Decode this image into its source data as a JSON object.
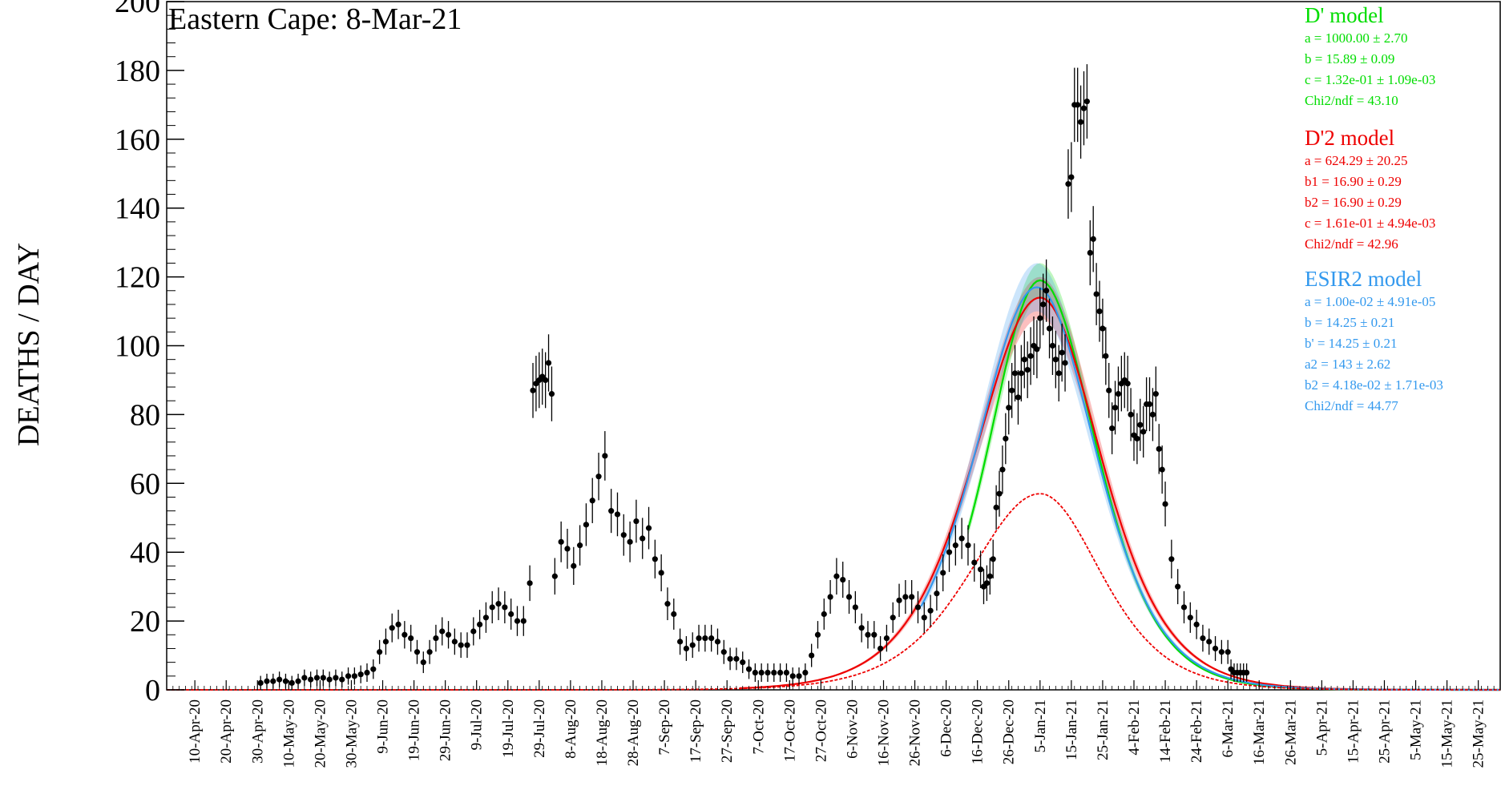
{
  "chart_data": {
    "type": "scatter",
    "title": "Eastern Cape: 8-Mar-21",
    "ylabel": "DEATHS / DAY",
    "xlabel": "",
    "ylim": [
      0,
      200
    ],
    "xlim": [
      "2020-04-01",
      "2021-06-01"
    ],
    "yticks": [
      0,
      20,
      40,
      60,
      80,
      100,
      120,
      140,
      160,
      180,
      200
    ],
    "xtick_labels": [
      {
        "date": "2020-04-10",
        "label": "10-Apr-20"
      },
      {
        "date": "2020-04-20",
        "label": "20-Apr-20"
      },
      {
        "date": "2020-04-30",
        "label": "30-Apr-20"
      },
      {
        "date": "2020-05-10",
        "label": "10-May-20"
      },
      {
        "date": "2020-05-20",
        "label": "20-May-20"
      },
      {
        "date": "2020-05-30",
        "label": "30-May-20"
      },
      {
        "date": "2020-06-09",
        "label": "9-Jun-20"
      },
      {
        "date": "2020-06-19",
        "label": "19-Jun-20"
      },
      {
        "date": "2020-06-29",
        "label": "29-Jun-20"
      },
      {
        "date": "2020-07-09",
        "label": "9-Jul-20"
      },
      {
        "date": "2020-07-19",
        "label": "19-Jul-20"
      },
      {
        "date": "2020-07-29",
        "label": "29-Jul-20"
      },
      {
        "date": "2020-08-08",
        "label": "8-Aug-20"
      },
      {
        "date": "2020-08-18",
        "label": "18-Aug-20"
      },
      {
        "date": "2020-08-28",
        "label": "28-Aug-20"
      },
      {
        "date": "2020-09-07",
        "label": "7-Sep-20"
      },
      {
        "date": "2020-09-17",
        "label": "17-Sep-20"
      },
      {
        "date": "2020-09-27",
        "label": "27-Sep-20"
      },
      {
        "date": "2020-10-07",
        "label": "7-Oct-20"
      },
      {
        "date": "2020-10-17",
        "label": "17-Oct-20"
      },
      {
        "date": "2020-10-27",
        "label": "27-Oct-20"
      },
      {
        "date": "2020-11-06",
        "label": "6-Nov-20"
      },
      {
        "date": "2020-11-16",
        "label": "16-Nov-20"
      },
      {
        "date": "2020-11-26",
        "label": "26-Nov-20"
      },
      {
        "date": "2020-12-06",
        "label": "6-Dec-20"
      },
      {
        "date": "2020-12-16",
        "label": "16-Dec-20"
      },
      {
        "date": "2020-12-26",
        "label": "26-Dec-20"
      },
      {
        "date": "2021-01-05",
        "label": "5-Jan-21"
      },
      {
        "date": "2021-01-15",
        "label": "15-Jan-21"
      },
      {
        "date": "2021-01-25",
        "label": "25-Jan-21"
      },
      {
        "date": "2021-02-04",
        "label": "4-Feb-21"
      },
      {
        "date": "2021-02-14",
        "label": "14-Feb-21"
      },
      {
        "date": "2021-02-24",
        "label": "24-Feb-21"
      },
      {
        "date": "2021-03-06",
        "label": "6-Mar-21"
      },
      {
        "date": "2021-03-16",
        "label": "16-Mar-21"
      },
      {
        "date": "2021-03-26",
        "label": "26-Mar-21"
      },
      {
        "date": "2021-04-05",
        "label": "5-Apr-21"
      },
      {
        "date": "2021-04-15",
        "label": "15-Apr-21"
      },
      {
        "date": "2021-04-25",
        "label": "25-Apr-21"
      },
      {
        "date": "2021-05-05",
        "label": "5-May-21"
      },
      {
        "date": "2021-05-15",
        "label": "15-May-21"
      },
      {
        "date": "2021-05-25",
        "label": "25-May-21"
      }
    ],
    "observed": {
      "points": [
        {
          "x": "2020-05-01",
          "y": 2
        },
        {
          "x": "2020-05-03",
          "y": 2.5
        },
        {
          "x": "2020-05-05",
          "y": 2.5
        },
        {
          "x": "2020-05-07",
          "y": 3
        },
        {
          "x": "2020-05-09",
          "y": 2.5
        },
        {
          "x": "2020-05-11",
          "y": 2
        },
        {
          "x": "2020-05-13",
          "y": 2.5
        },
        {
          "x": "2020-05-15",
          "y": 3.5
        },
        {
          "x": "2020-05-17",
          "y": 3
        },
        {
          "x": "2020-05-19",
          "y": 3.5
        },
        {
          "x": "2020-05-21",
          "y": 3.5
        },
        {
          "x": "2020-05-23",
          "y": 3
        },
        {
          "x": "2020-05-25",
          "y": 3.5
        },
        {
          "x": "2020-05-27",
          "y": 3
        },
        {
          "x": "2020-05-29",
          "y": 4
        },
        {
          "x": "2020-05-31",
          "y": 4
        },
        {
          "x": "2020-06-02",
          "y": 4.5
        },
        {
          "x": "2020-06-04",
          "y": 5
        },
        {
          "x": "2020-06-06",
          "y": 6
        },
        {
          "x": "2020-06-08",
          "y": 11
        },
        {
          "x": "2020-06-10",
          "y": 14
        },
        {
          "x": "2020-06-12",
          "y": 18
        },
        {
          "x": "2020-06-14",
          "y": 19
        },
        {
          "x": "2020-06-16",
          "y": 16
        },
        {
          "x": "2020-06-18",
          "y": 15
        },
        {
          "x": "2020-06-20",
          "y": 11
        },
        {
          "x": "2020-06-22",
          "y": 8
        },
        {
          "x": "2020-06-24",
          "y": 11
        },
        {
          "x": "2020-06-26",
          "y": 15
        },
        {
          "x": "2020-06-28",
          "y": 17
        },
        {
          "x": "2020-06-30",
          "y": 16
        },
        {
          "x": "2020-07-02",
          "y": 14
        },
        {
          "x": "2020-07-04",
          "y": 13
        },
        {
          "x": "2020-07-06",
          "y": 13
        },
        {
          "x": "2020-07-08",
          "y": 17
        },
        {
          "x": "2020-07-10",
          "y": 19
        },
        {
          "x": "2020-07-12",
          "y": 21
        },
        {
          "x": "2020-07-14",
          "y": 24
        },
        {
          "x": "2020-07-16",
          "y": 25
        },
        {
          "x": "2020-07-18",
          "y": 24
        },
        {
          "x": "2020-07-20",
          "y": 22
        },
        {
          "x": "2020-07-22",
          "y": 20
        },
        {
          "x": "2020-07-24",
          "y": 20
        },
        {
          "x": "2020-07-26",
          "y": 31
        },
        {
          "x": "2020-07-27",
          "y": 87
        },
        {
          "x": "2020-07-28",
          "y": 89
        },
        {
          "x": "2020-07-29",
          "y": 90
        },
        {
          "x": "2020-07-30",
          "y": 91
        },
        {
          "x": "2020-07-31",
          "y": 90
        },
        {
          "x": "2020-08-01",
          "y": 95
        },
        {
          "x": "2020-08-02",
          "y": 86
        },
        {
          "x": "2020-08-03",
          "y": 33
        },
        {
          "x": "2020-08-05",
          "y": 43
        },
        {
          "x": "2020-08-07",
          "y": 41
        },
        {
          "x": "2020-08-09",
          "y": 36
        },
        {
          "x": "2020-08-11",
          "y": 42
        },
        {
          "x": "2020-08-13",
          "y": 48
        },
        {
          "x": "2020-08-15",
          "y": 55
        },
        {
          "x": "2020-08-17",
          "y": 62
        },
        {
          "x": "2020-08-19",
          "y": 68
        },
        {
          "x": "2020-08-21",
          "y": 52
        },
        {
          "x": "2020-08-23",
          "y": 51
        },
        {
          "x": "2020-08-25",
          "y": 45
        },
        {
          "x": "2020-08-27",
          "y": 43
        },
        {
          "x": "2020-08-29",
          "y": 49
        },
        {
          "x": "2020-08-31",
          "y": 44
        },
        {
          "x": "2020-09-02",
          "y": 47
        },
        {
          "x": "2020-09-04",
          "y": 38
        },
        {
          "x": "2020-09-06",
          "y": 34
        },
        {
          "x": "2020-09-08",
          "y": 25
        },
        {
          "x": "2020-09-10",
          "y": 22
        },
        {
          "x": "2020-09-12",
          "y": 14
        },
        {
          "x": "2020-09-14",
          "y": 12
        },
        {
          "x": "2020-09-16",
          "y": 13
        },
        {
          "x": "2020-09-18",
          "y": 15
        },
        {
          "x": "2020-09-20",
          "y": 15
        },
        {
          "x": "2020-09-22",
          "y": 15
        },
        {
          "x": "2020-09-24",
          "y": 14
        },
        {
          "x": "2020-09-26",
          "y": 11
        },
        {
          "x": "2020-09-28",
          "y": 9
        },
        {
          "x": "2020-09-30",
          "y": 9
        },
        {
          "x": "2020-10-02",
          "y": 8
        },
        {
          "x": "2020-10-04",
          "y": 6
        },
        {
          "x": "2020-10-06",
          "y": 5
        },
        {
          "x": "2020-10-08",
          "y": 5
        },
        {
          "x": "2020-10-10",
          "y": 5
        },
        {
          "x": "2020-10-12",
          "y": 5
        },
        {
          "x": "2020-10-14",
          "y": 5
        },
        {
          "x": "2020-10-16",
          "y": 5
        },
        {
          "x": "2020-10-18",
          "y": 4
        },
        {
          "x": "2020-10-20",
          "y": 4
        },
        {
          "x": "2020-10-22",
          "y": 5
        },
        {
          "x": "2020-10-24",
          "y": 10
        },
        {
          "x": "2020-10-26",
          "y": 16
        },
        {
          "x": "2020-10-28",
          "y": 22
        },
        {
          "x": "2020-10-30",
          "y": 27
        },
        {
          "x": "2020-11-01",
          "y": 33
        },
        {
          "x": "2020-11-03",
          "y": 32
        },
        {
          "x": "2020-11-05",
          "y": 27
        },
        {
          "x": "2020-11-07",
          "y": 24
        },
        {
          "x": "2020-11-09",
          "y": 18
        },
        {
          "x": "2020-11-11",
          "y": 16
        },
        {
          "x": "2020-11-13",
          "y": 16
        },
        {
          "x": "2020-11-15",
          "y": 12
        },
        {
          "x": "2020-11-17",
          "y": 15
        },
        {
          "x": "2020-11-19",
          "y": 21
        },
        {
          "x": "2020-11-21",
          "y": 26
        },
        {
          "x": "2020-11-23",
          "y": 27
        },
        {
          "x": "2020-11-25",
          "y": 27
        },
        {
          "x": "2020-11-27",
          "y": 24
        },
        {
          "x": "2020-11-29",
          "y": 21
        },
        {
          "x": "2020-12-01",
          "y": 23
        },
        {
          "x": "2020-12-03",
          "y": 28
        },
        {
          "x": "2020-12-05",
          "y": 34
        },
        {
          "x": "2020-12-07",
          "y": 40
        },
        {
          "x": "2020-12-09",
          "y": 42
        },
        {
          "x": "2020-12-11",
          "y": 44
        },
        {
          "x": "2020-12-13",
          "y": 42
        },
        {
          "x": "2020-12-15",
          "y": 37
        },
        {
          "x": "2020-12-17",
          "y": 35
        },
        {
          "x": "2020-12-18",
          "y": 30
        },
        {
          "x": "2020-12-19",
          "y": 31
        },
        {
          "x": "2020-12-20",
          "y": 33
        },
        {
          "x": "2020-12-21",
          "y": 38
        },
        {
          "x": "2020-12-22",
          "y": 53
        },
        {
          "x": "2020-12-23",
          "y": 57
        },
        {
          "x": "2020-12-24",
          "y": 64
        },
        {
          "x": "2020-12-25",
          "y": 73
        },
        {
          "x": "2020-12-26",
          "y": 82
        },
        {
          "x": "2020-12-27",
          "y": 87
        },
        {
          "x": "2020-12-28",
          "y": 92
        },
        {
          "x": "2020-12-29",
          "y": 85
        },
        {
          "x": "2020-12-30",
          "y": 92
        },
        {
          "x": "2020-12-31",
          "y": 96
        },
        {
          "x": "2021-01-01",
          "y": 93
        },
        {
          "x": "2021-01-02",
          "y": 97
        },
        {
          "x": "2021-01-03",
          "y": 100
        },
        {
          "x": "2021-01-04",
          "y": 99
        },
        {
          "x": "2021-01-05",
          "y": 108
        },
        {
          "x": "2021-01-06",
          "y": 112
        },
        {
          "x": "2021-01-07",
          "y": 116
        },
        {
          "x": "2021-01-08",
          "y": 105
        },
        {
          "x": "2021-01-09",
          "y": 100
        },
        {
          "x": "2021-01-10",
          "y": 96
        },
        {
          "x": "2021-01-11",
          "y": 92
        },
        {
          "x": "2021-01-12",
          "y": 98
        },
        {
          "x": "2021-01-13",
          "y": 95
        },
        {
          "x": "2021-01-14",
          "y": 147
        },
        {
          "x": "2021-01-15",
          "y": 149
        },
        {
          "x": "2021-01-16",
          "y": 170
        },
        {
          "x": "2021-01-17",
          "y": 170
        },
        {
          "x": "2021-01-18",
          "y": 165
        },
        {
          "x": "2021-01-19",
          "y": 169
        },
        {
          "x": "2021-01-20",
          "y": 171
        },
        {
          "x": "2021-01-21",
          "y": 127
        },
        {
          "x": "2021-01-22",
          "y": 131
        },
        {
          "x": "2021-01-23",
          "y": 115
        },
        {
          "x": "2021-01-24",
          "y": 110
        },
        {
          "x": "2021-01-25",
          "y": 105
        },
        {
          "x": "2021-01-26",
          "y": 97
        },
        {
          "x": "2021-01-27",
          "y": 87
        },
        {
          "x": "2021-01-28",
          "y": 76
        },
        {
          "x": "2021-01-29",
          "y": 82
        },
        {
          "x": "2021-01-30",
          "y": 86
        },
        {
          "x": "2021-01-31",
          "y": 89
        },
        {
          "x": "2021-02-01",
          "y": 90
        },
        {
          "x": "2021-02-02",
          "y": 89
        },
        {
          "x": "2021-02-03",
          "y": 80
        },
        {
          "x": "2021-02-04",
          "y": 74
        },
        {
          "x": "2021-02-05",
          "y": 73
        },
        {
          "x": "2021-02-06",
          "y": 77
        },
        {
          "x": "2021-02-07",
          "y": 75
        },
        {
          "x": "2021-02-08",
          "y": 83
        },
        {
          "x": "2021-02-09",
          "y": 83
        },
        {
          "x": "2021-02-10",
          "y": 80
        },
        {
          "x": "2021-02-11",
          "y": 86
        },
        {
          "x": "2021-02-12",
          "y": 70
        },
        {
          "x": "2021-02-13",
          "y": 64
        },
        {
          "x": "2021-02-14",
          "y": 54
        },
        {
          "x": "2021-02-16",
          "y": 38
        },
        {
          "x": "2021-02-18",
          "y": 30
        },
        {
          "x": "2021-02-20",
          "y": 24
        },
        {
          "x": "2021-02-22",
          "y": 21
        },
        {
          "x": "2021-02-24",
          "y": 19
        },
        {
          "x": "2021-02-26",
          "y": 15
        },
        {
          "x": "2021-02-28",
          "y": 14
        },
        {
          "x": "2021-03-02",
          "y": 12
        },
        {
          "x": "2021-03-04",
          "y": 11
        },
        {
          "x": "2021-03-06",
          "y": 11
        },
        {
          "x": "2021-03-07",
          "y": 6
        },
        {
          "x": "2021-03-08",
          "y": 5
        },
        {
          "x": "2021-03-09",
          "y": 5
        },
        {
          "x": "2021-03-10",
          "y": 5
        },
        {
          "x": "2021-03-11",
          "y": 5
        },
        {
          "x": "2021-03-12",
          "y": 5
        }
      ]
    },
    "models": [
      {
        "name": "D' model",
        "color": "#00dd00",
        "params": [
          "a = 1000.00 ± 2.70",
          "b = 15.89 ± 0.09",
          "c = 1.32e-01 ± 1.09e-03",
          "Chi2/ndf = 43.10"
        ],
        "peak_date": "2021-01-05",
        "peak_value": 119,
        "band": 5,
        "fit_start": "2020-12-13"
      },
      {
        "name": "D'2 model",
        "color": "#ee0000",
        "params": [
          "a = 624.29 ± 20.25",
          "b1 = 16.90 ± 0.29",
          "b2 = 16.90 ± 0.29",
          "c = 1.61e-01 ± 4.94e-03",
          "Chi2/ndf = 42.96"
        ],
        "peak_date": "2021-01-05",
        "peak_value": 114,
        "band": 6,
        "fit_start": "2020-10-01"
      },
      {
        "name": "ESIR2 model",
        "color": "#3399ee",
        "params": [
          "a = 1.00e-02 ± 4.91e-05",
          "b = 14.25 ± 0.21",
          "b' = 14.25 ± 0.21",
          "a2 = 143 ± 2.62",
          "b2 = 4.18e-02 ± 1.71e-03",
          "Chi2/ndf = 44.77"
        ],
        "peak_date": "2021-01-04",
        "peak_value": 117,
        "band": 7,
        "fit_start": "2020-11-28"
      }
    ],
    "component_curve": {
      "color": "#ee0000",
      "peak_date": "2021-01-05",
      "peak_value": 57
    },
    "legend_placement": "top-right",
    "grid": false
  }
}
